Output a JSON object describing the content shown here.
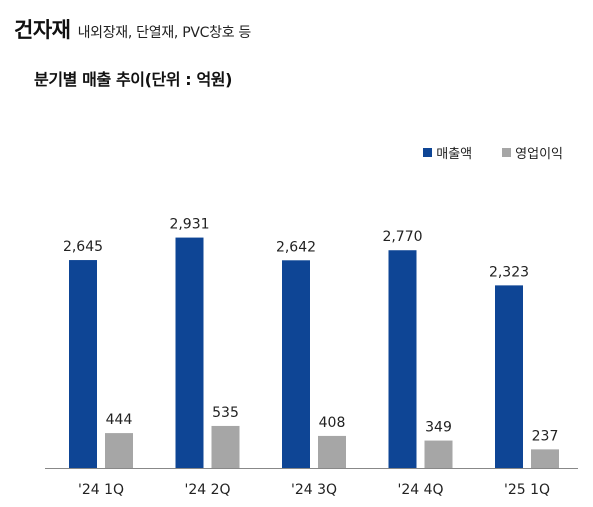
{
  "header": {
    "title": "건자재",
    "subtitle": "내외장재, 단열재, PVC창호 등"
  },
  "chart_data": {
    "type": "bar",
    "title": "분기별 매출 추이(단위 : 억원)",
    "categories": [
      "'24 1Q",
      "'24 2Q",
      "'24 3Q",
      "'24 4Q",
      "'25 1Q"
    ],
    "series": [
      {
        "name": "매출액",
        "values": [
          2645,
          2931,
          2642,
          2770,
          2323
        ],
        "labels": [
          "2,645",
          "2,931",
          "2,642",
          "2,770",
          "2,323"
        ],
        "color": "#0e4595"
      },
      {
        "name": "영업이익",
        "values": [
          444,
          535,
          408,
          349,
          237
        ],
        "labels": [
          "444",
          "535",
          "408",
          "349",
          "237"
        ],
        "color": "#a6a6a6"
      }
    ],
    "ylim": [
      0,
      3180
    ],
    "legend": "top-right",
    "grid": false
  }
}
